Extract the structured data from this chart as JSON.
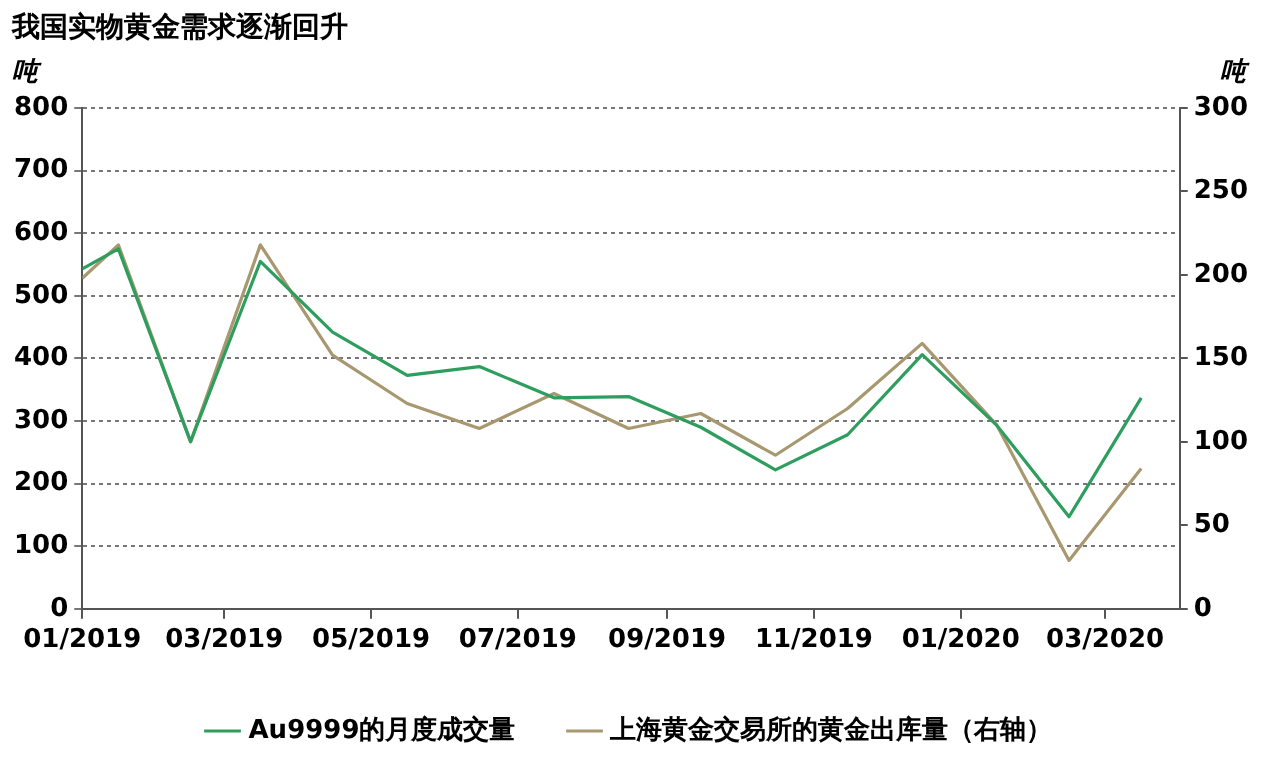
{
  "chart_data": {
    "type": "line",
    "title": "我国实物黄金需求逐渐回升",
    "ylabel": "吨",
    "y2label": "吨",
    "x": [
      "2019-01-01",
      "2019-01-16",
      "2019-02-15",
      "2019-03-16",
      "2019-04-15",
      "2019-05-16",
      "2019-06-15",
      "2019-07-16",
      "2019-08-16",
      "2019-09-15",
      "2019-10-16",
      "2019-11-15",
      "2019-12-16",
      "2020-01-16",
      "2020-02-15",
      "2020-03-16"
    ],
    "series": [
      {
        "name": "Au9999的月度成交量",
        "color": "#2e9e5e",
        "values": [
          543,
          575,
          267,
          555,
          442,
          373,
          387,
          337,
          339,
          290,
          222,
          278,
          406,
          293,
          147,
          337
        ]
      },
      {
        "name": "上海黄金交易所的黄金出库量（右轴）",
        "color": "#a89870",
        "axis": "y2",
        "values": [
          198,
          218,
          100,
          218,
          152,
          123,
          108,
          129,
          108,
          117,
          92,
          120,
          159,
          110,
          29,
          84
        ]
      }
    ],
    "xlim": [
      "2019-01-01",
      "2020-04-01"
    ],
    "xticks": [
      {
        "value": "2019-01-01",
        "label": "01/2019"
      },
      {
        "value": "2019-03-01",
        "label": "03/2019"
      },
      {
        "value": "2019-05-01",
        "label": "05/2019"
      },
      {
        "value": "2019-07-01",
        "label": "07/2019"
      },
      {
        "value": "2019-09-01",
        "label": "09/2019"
      },
      {
        "value": "2019-11-01",
        "label": "11/2019"
      },
      {
        "value": "2020-01-01",
        "label": "01/2020"
      },
      {
        "value": "2020-03-01",
        "label": "03/2020"
      }
    ],
    "ylim": [
      0,
      800
    ],
    "yticks": [
      0,
      100,
      200,
      300,
      400,
      500,
      600,
      700,
      800
    ],
    "y2lim": [
      0,
      300
    ],
    "y2ticks": [
      0,
      50,
      100,
      150,
      200,
      250,
      300
    ],
    "grid": "y",
    "legend": "bottom",
    "marker": "none",
    "line_style": "solid"
  }
}
